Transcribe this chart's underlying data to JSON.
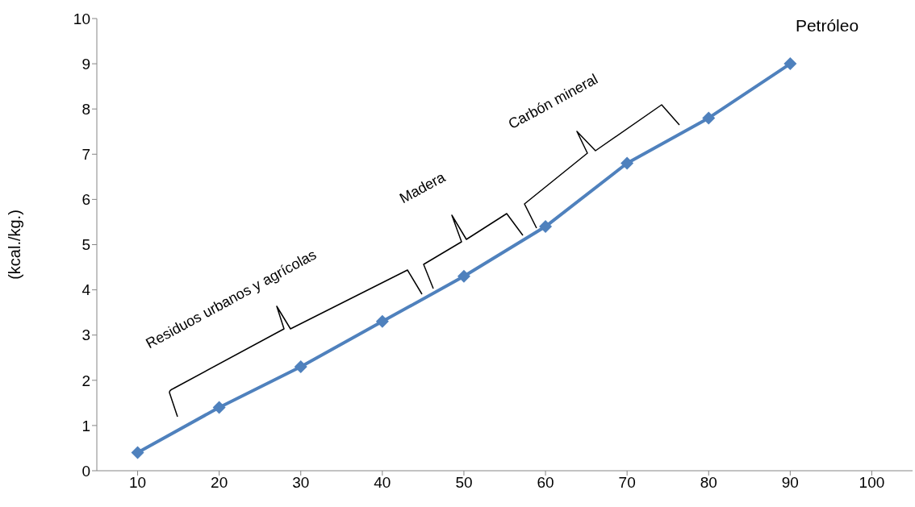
{
  "chart_data": {
    "type": "line",
    "ylabel": "(kcal./kg.)",
    "categories": [
      "10",
      "20",
      "30",
      "40",
      "50",
      "60",
      "70",
      "80",
      "90",
      "100"
    ],
    "series": [
      {
        "color": "#4f81bd",
        "values": [
          0.4,
          1.4,
          2.3,
          3.3,
          4.3,
          5.4,
          6.8,
          7.8,
          9.0,
          null
        ]
      }
    ],
    "ylim": [
      0,
      10
    ],
    "yticks": [
      0,
      1,
      2,
      3,
      4,
      5,
      6,
      7,
      8,
      9,
      10
    ],
    "grid": false,
    "legend": false,
    "marker": "diamond",
    "line_style": "solid",
    "annotations": [
      "Petróleo",
      "Residuos urbanos y agrícolas",
      "Madera",
      "Carbón mineral"
    ]
  }
}
